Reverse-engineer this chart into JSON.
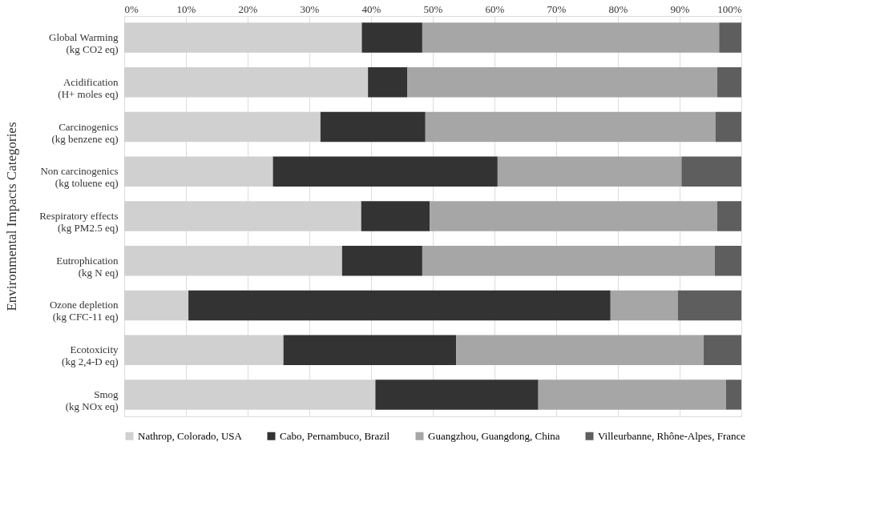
{
  "chart_data": {
    "type": "bar",
    "orientation": "horizontal",
    "stacked": true,
    "ylabel": "Environmental Impacts  Categories",
    "categories": [
      "Global Warming\n(kg CO2 eq)",
      "Acidification\n(H+ moles eq)",
      "Carcinogenics\n(kg benzene eq)",
      "Non carcinogenics\n(kg toluene eq)",
      "Respiratory effects\n(kg PM2.5 eq)",
      "Eutrophication\n(kg N eq)",
      "Ozone depletion\n(kg CFC-11 eq)",
      "Ecotoxicity\n(kg 2,4-D eq)",
      "Smog\n(kg NOx eq)"
    ],
    "series": [
      {
        "name": "Nathrop, Colorado, USA",
        "color": "#d0d0d0",
        "values": [
          38.5,
          39.5,
          31.8,
          24.1,
          38.4,
          35.3,
          10.4,
          25.8,
          40.7
        ]
      },
      {
        "name": "Cabo, Pernambuco, Brazil",
        "color": "#333333",
        "values": [
          9.8,
          6.4,
          17.0,
          36.4,
          11.1,
          13.0,
          68.4,
          28.0,
          26.4
        ]
      },
      {
        "name": "Guangzhou, Guangdong, China",
        "color": "#a6a6a6",
        "values": [
          48.1,
          50.2,
          47.0,
          29.8,
          46.6,
          47.4,
          10.9,
          40.1,
          30.4
        ]
      },
      {
        "name": "Villeurbanne, Rhône-Alpes, France",
        "color": "#5e5e5e",
        "values": [
          3.6,
          3.9,
          4.2,
          9.7,
          3.9,
          4.3,
          10.3,
          6.1,
          2.5
        ]
      }
    ],
    "xlim": [
      0,
      100
    ],
    "xticks": [
      {
        "value": 0,
        "label": "0%"
      },
      {
        "value": 10,
        "label": "10%"
      },
      {
        "value": 20,
        "label": "20%"
      },
      {
        "value": 30,
        "label": "30%"
      },
      {
        "value": 40,
        "label": "40%"
      },
      {
        "value": 50,
        "label": "50%"
      },
      {
        "value": 60,
        "label": "60%"
      },
      {
        "value": 70,
        "label": "70%"
      },
      {
        "value": 80,
        "label": "80%"
      },
      {
        "value": 90,
        "label": "90%"
      },
      {
        "value": 100,
        "label": "100%"
      }
    ],
    "grid": "x",
    "legend": "bottom"
  }
}
